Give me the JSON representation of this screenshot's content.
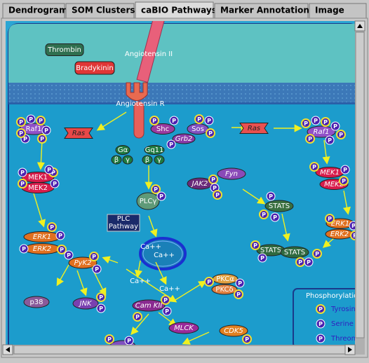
{
  "tabs": [
    "Dendrogram",
    "SOM Clusters",
    "caBIO Pathways",
    "Marker Annotations",
    "Image"
  ],
  "phospho": "P",
  "nodes": [
    {
      "label": "Thrombin"
    },
    {
      "label": "Bradykinin"
    },
    {
      "label": "Angiotensin II"
    },
    {
      "label": "Angiotensin R"
    },
    {
      "label": "Raf1"
    },
    {
      "label": "Ras"
    },
    {
      "label": "Shc"
    },
    {
      "label": "Grb2"
    },
    {
      "label": "Sos"
    },
    {
      "label": "Ras"
    },
    {
      "label": "Raf1"
    },
    {
      "label": "Gα"
    },
    {
      "label": "β"
    },
    {
      "label": "γ"
    },
    {
      "label": "Gq11"
    },
    {
      "label": "β"
    },
    {
      "label": "γ"
    },
    {
      "label": "MEK1"
    },
    {
      "label": "MEK2"
    },
    {
      "label": "PLCγ"
    },
    {
      "label": "JAK2"
    },
    {
      "label": "Fyn"
    },
    {
      "label": "STATS"
    },
    {
      "label": "MEK1"
    },
    {
      "label": "MEK2"
    },
    {
      "lines": [
        "PLC",
        "Pathway"
      ]
    },
    {
      "label": "ERK1"
    },
    {
      "label": "ERK2"
    },
    {
      "label": "Ca++"
    },
    {
      "label": "Ca++"
    },
    {
      "label": "ERK1"
    },
    {
      "label": "ERK2"
    },
    {
      "label": "PyK2"
    },
    {
      "label": "STATS"
    },
    {
      "label": "STATS"
    },
    {
      "label": "Ca++"
    },
    {
      "label": "Ca++"
    },
    {
      "label": "PKCα"
    },
    {
      "label": "PKCδ"
    },
    {
      "label": "p38"
    },
    {
      "label": "JNK"
    },
    {
      "label": "Cam KII"
    },
    {
      "label": "MLCK"
    },
    {
      "label": "CDK5"
    }
  ],
  "legend": {
    "title": "Phosphorylatio",
    "items": [
      "Tyrosin",
      "Serine",
      "Threon"
    ]
  }
}
